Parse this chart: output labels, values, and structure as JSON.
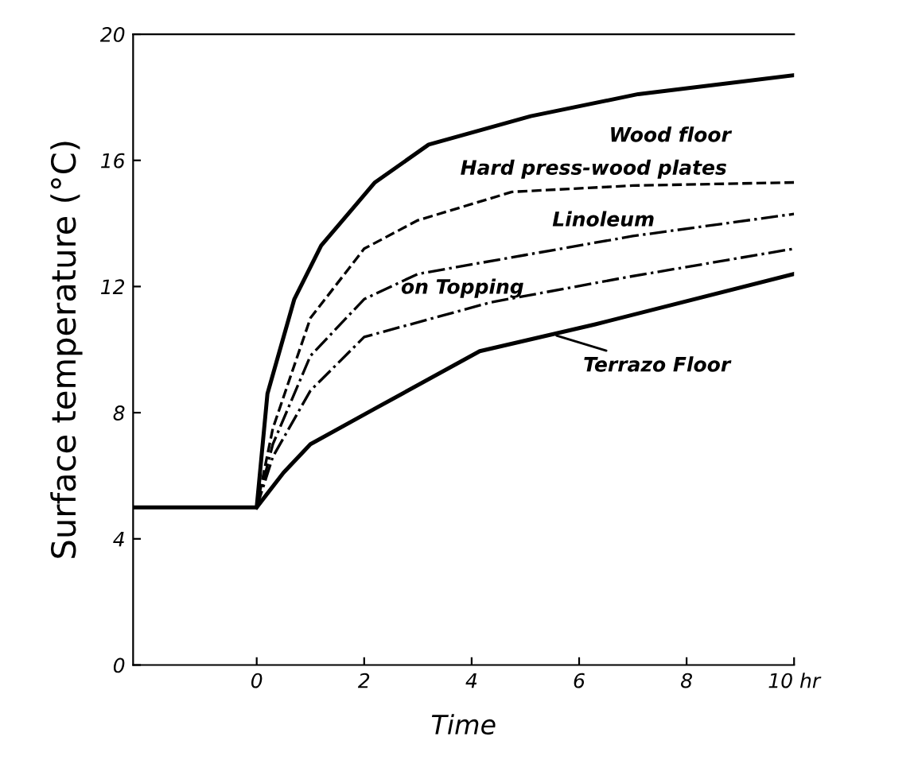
{
  "chart_data": {
    "type": "line",
    "xlabel": "Time",
    "ylabel": "Surface temperature (°C)",
    "xlim": [
      -2.3,
      10
    ],
    "ylim": [
      0,
      20
    ],
    "xticks": [
      0,
      2,
      4,
      6,
      8,
      {
        "value": 10,
        "label": "10 hr"
      }
    ],
    "yticks": [
      0,
      4,
      8,
      12,
      16,
      20
    ],
    "grid": false,
    "marker": "none",
    "series": [
      {
        "name": "Wood floor",
        "color": "#000000",
        "line_style": "solid",
        "x": [
          -2.3,
          0,
          0.2,
          0.7,
          1.2,
          2.2,
          3.2,
          5.1,
          7.1,
          10
        ],
        "values": [
          5,
          5,
          8.6,
          11.6,
          13.3,
          15.3,
          16.5,
          17.4,
          18.1,
          18.7
        ]
      },
      {
        "name": "Hard press-wood plates",
        "color": "#000000",
        "line_style": "dashed",
        "x": [
          0,
          0.3,
          1,
          2,
          3,
          4.75,
          7,
          10
        ],
        "values": [
          5,
          7.5,
          11,
          13.2,
          14.1,
          15,
          15.2,
          15.3
        ]
      },
      {
        "name": "Linoleum",
        "color": "#000000",
        "line_style": "dashdot",
        "x": [
          0,
          0.3,
          1,
          2,
          3,
          5,
          7,
          10
        ],
        "values": [
          5,
          7,
          9.8,
          11.6,
          12.4,
          13,
          13.6,
          14.3
        ]
      },
      {
        "name": "on Topping",
        "color": "#000000",
        "line_style": "dashdot",
        "x": [
          0,
          0.3,
          1,
          2,
          4.36,
          6.9,
          10
        ],
        "values": [
          5,
          6.6,
          8.7,
          10.4,
          11.5,
          12.3,
          13.2
        ]
      },
      {
        "name": "Terrazo Floor",
        "color": "#000000",
        "line_style": "solid",
        "x": [
          0,
          0.5,
          1,
          2.17,
          4.15,
          6.3,
          10
        ],
        "values": [
          5,
          6.1,
          7,
          8.1,
          9.95,
          10.8,
          12.4
        ]
      }
    ]
  }
}
